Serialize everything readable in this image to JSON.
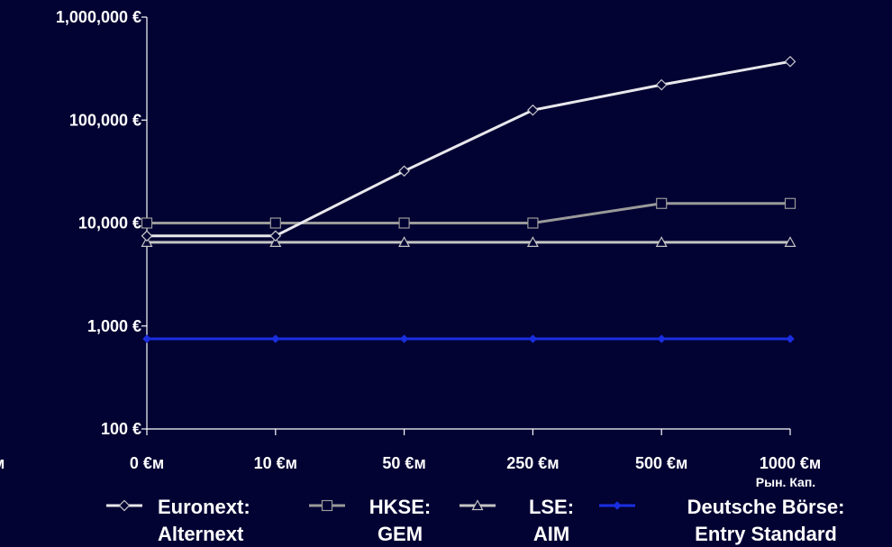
{
  "chart_data": {
    "type": "line",
    "y_scale": "log",
    "ylim": [
      100,
      1000000
    ],
    "y_ticks": [
      {
        "value": 100,
        "label": "100 €"
      },
      {
        "value": 1000,
        "label": "1,000 €"
      },
      {
        "value": 10000,
        "label": "10,000 €"
      },
      {
        "value": 100000,
        "label": "100,000 €"
      },
      {
        "value": 1000000,
        "label": "1,000,000 €"
      }
    ],
    "categories": [
      "0 €м",
      "10 €м",
      "50 €м",
      "250 €м",
      "500 €м",
      "1000 €м"
    ],
    "partial_left_label": "м",
    "xlabel": "Рын. Кап.",
    "grid": false,
    "legend_position": "bottom",
    "series": [
      {
        "name": "Euronext: Alternext",
        "legend_lines": [
          "Euronext:",
          "Alternext"
        ],
        "marker": "diamond",
        "color": "#e8e8ec",
        "values": [
          7500,
          7500,
          32000,
          125000,
          220000,
          370000
        ]
      },
      {
        "name": "HKSE: GEM",
        "legend_lines": [
          "HKSE:",
          "GEM"
        ],
        "marker": "square",
        "color": "#9a9a9a",
        "values": [
          10000,
          10000,
          10000,
          10000,
          15500,
          15500
        ]
      },
      {
        "name": "LSE: AIM",
        "legend_lines": [
          "LSE:",
          "AIM"
        ],
        "marker": "triangle",
        "color": "#c4c4c4",
        "values": [
          6500,
          6500,
          6500,
          6500,
          6500,
          6500
        ]
      },
      {
        "name": "Deutsche Börse: Entry Standard",
        "legend_lines": [
          "Deutsche Börse:",
          "Entry Standard"
        ],
        "marker": "diamond-filled",
        "color": "#1a2ee0",
        "values": [
          750,
          750,
          750,
          750,
          750,
          750
        ]
      }
    ]
  }
}
